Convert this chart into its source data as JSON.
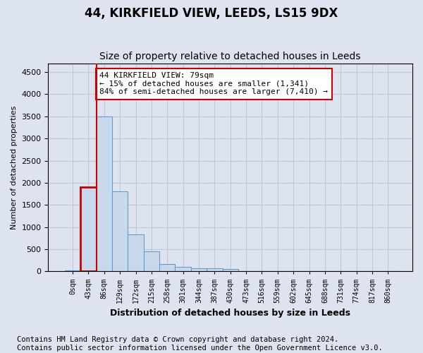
{
  "title": "44, KIRKFIELD VIEW, LEEDS, LS15 9DX",
  "subtitle": "Size of property relative to detached houses in Leeds",
  "xlabel": "Distribution of detached houses by size in Leeds",
  "ylabel": "Number of detached properties",
  "bin_labels": [
    "0sqm",
    "43sqm",
    "86sqm",
    "129sqm",
    "172sqm",
    "215sqm",
    "258sqm",
    "301sqm",
    "344sqm",
    "387sqm",
    "430sqm",
    "473sqm",
    "516sqm",
    "559sqm",
    "602sqm",
    "645sqm",
    "688sqm",
    "731sqm",
    "774sqm",
    "817sqm",
    "860sqm"
  ],
  "bar_heights": [
    30,
    1900,
    3500,
    1800,
    830,
    450,
    165,
    100,
    75,
    65,
    50,
    0,
    0,
    0,
    0,
    0,
    0,
    0,
    0,
    0,
    0
  ],
  "bar_color": "#c9d9ec",
  "bar_edge_color": "#6699cc",
  "highlight_bar_index": 1,
  "highlight_color": "#cc0000",
  "annotation_text": "44 KIRKFIELD VIEW: 79sqm\n← 15% of detached houses are smaller (1,341)\n84% of semi-detached houses are larger (7,410) →",
  "annotation_box_color": "white",
  "annotation_box_edge_color": "#cc0000",
  "ylim": [
    0,
    4700
  ],
  "yticks": [
    0,
    500,
    1000,
    1500,
    2000,
    2500,
    3000,
    3500,
    4000,
    4500
  ],
  "grid_color": "#c0c8d8",
  "background_color": "#dde4ef",
  "plot_bg_color": "#dde4ef",
  "footer_line1": "Contains HM Land Registry data © Crown copyright and database right 2024.",
  "footer_line2": "Contains public sector information licensed under the Open Government Licence v3.0.",
  "title_fontsize": 12,
  "subtitle_fontsize": 10,
  "annotation_fontsize": 8.0,
  "footer_fontsize": 7.5
}
